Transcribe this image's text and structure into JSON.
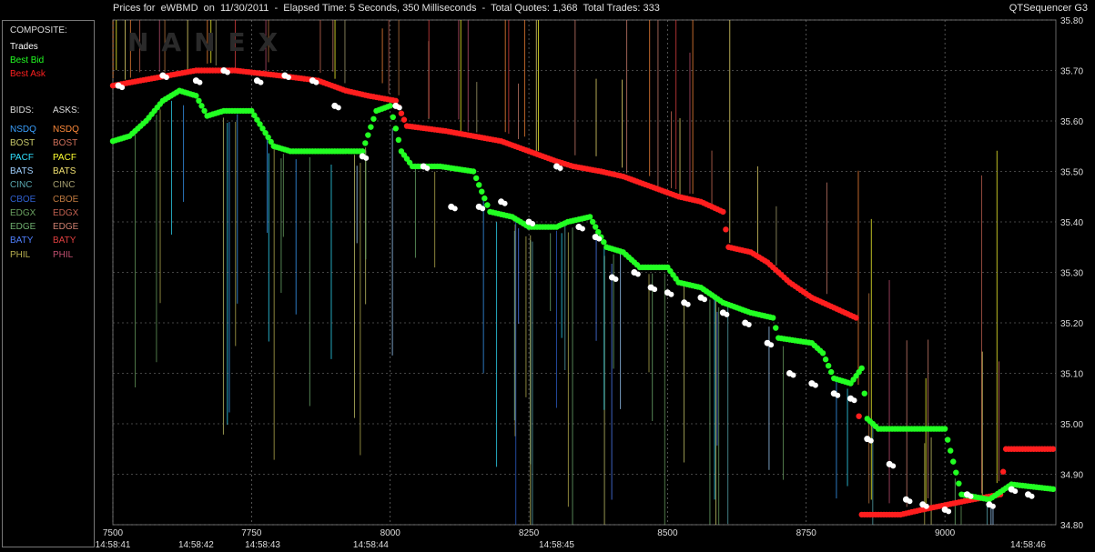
{
  "header": {
    "title": "Prices for  eWBMD  on  11/30/2011  -  Elapsed Time: 5 Seconds, 350 Milliseconds  -  Total Quotes: 1,368  Total Trades: 333",
    "app": "QTSequencer G3"
  },
  "watermark": "NANEX",
  "legend": {
    "composite_label": "COMPOSITE:",
    "composite": [
      {
        "label": "Trades",
        "color": "#ffffff"
      },
      {
        "label": "Best Bid",
        "color": "#22ff22"
      },
      {
        "label": "Best Ask",
        "color": "#ff2020"
      }
    ],
    "bids_label": "BIDS:",
    "asks_label": "ASKS:",
    "exchanges": [
      {
        "bid": "NSDQ",
        "bid_color": "#3aa0ff",
        "ask": "NSDQ",
        "ask_color": "#ff8a3a"
      },
      {
        "bid": "BOST",
        "bid_color": "#c9c96a",
        "ask": "BOST",
        "ask_color": "#d0705a"
      },
      {
        "bid": "PACF",
        "bid_color": "#30e0ff",
        "ask": "PACF",
        "ask_color": "#ffff30"
      },
      {
        "bid": "BATS",
        "bid_color": "#a0d0ff",
        "ask": "BATS",
        "ask_color": "#f0e070"
      },
      {
        "bid": "CINC",
        "bid_color": "#5aa8b0",
        "ask": "CINC",
        "ask_color": "#a8a070"
      },
      {
        "bid": "CBOE",
        "bid_color": "#3060d0",
        "ask": "CBOE",
        "ask_color": "#c07a40"
      },
      {
        "bid": "EDGX",
        "bid_color": "#6aa060",
        "ask": "EDGX",
        "ask_color": "#c06050"
      },
      {
        "bid": "EDGE",
        "bid_color": "#70b070",
        "ask": "EDGE",
        "ask_color": "#d08070"
      },
      {
        "bid": "BATY",
        "bid_color": "#5080ff",
        "ask": "BATY",
        "ask_color": "#e04040"
      },
      {
        "bid": "PHIL",
        "bid_color": "#b8b050",
        "ask": "PHIL",
        "ask_color": "#c05070"
      }
    ]
  },
  "chart_data": {
    "type": "line",
    "title": "Prices for eWBMD on 11/30/2011",
    "xlabel": "",
    "ylabel": "",
    "xlim": [
      7500,
      9200
    ],
    "ylim": [
      34.8,
      35.8
    ],
    "x_ticks": [
      7500,
      7750,
      8000,
      8250,
      8500,
      8750,
      9000
    ],
    "y_ticks": [
      "35.80",
      "35.70",
      "35.60",
      "35.50",
      "35.40",
      "35.30",
      "35.20",
      "35.10",
      "35.00",
      "34.90",
      "34.80"
    ],
    "time_labels": [
      {
        "x": 7500,
        "label": "14:58:41"
      },
      {
        "x": 7650,
        "label": "14:58:42"
      },
      {
        "x": 7770,
        "label": "14:58:43"
      },
      {
        "x": 7965,
        "label": "14:58:44"
      },
      {
        "x": 8300,
        "label": "14:58:45"
      },
      {
        "x": 9150,
        "label": "14:58:46"
      }
    ],
    "grid": true,
    "series": [
      {
        "name": "Best Ask",
        "color": "#ff1e1e",
        "points": [
          [
            7500,
            35.67
          ],
          [
            7550,
            35.68
          ],
          [
            7600,
            35.69
          ],
          [
            7650,
            35.7
          ],
          [
            7720,
            35.7
          ],
          [
            7800,
            35.69
          ],
          [
            7870,
            35.68
          ],
          [
            7920,
            35.66
          ],
          [
            7960,
            35.65
          ],
          [
            8010,
            35.64
          ],
          [
            8030,
            35.59
          ],
          [
            8100,
            35.58
          ],
          [
            8150,
            35.57
          ],
          [
            8200,
            35.56
          ],
          [
            8250,
            35.54
          ],
          [
            8300,
            35.52
          ],
          [
            8330,
            35.51
          ],
          [
            8380,
            35.5
          ],
          [
            8420,
            35.49
          ],
          [
            8470,
            35.47
          ],
          [
            8520,
            35.45
          ],
          [
            8560,
            35.44
          ],
          [
            8600,
            35.42
          ],
          [
            8610,
            35.35
          ],
          [
            8650,
            35.34
          ],
          [
            8680,
            35.32
          ],
          [
            8720,
            35.28
          ],
          [
            8760,
            35.25
          ],
          [
            8800,
            35.23
          ],
          [
            8840,
            35.21
          ],
          [
            8850,
            34.82
          ],
          [
            8920,
            34.82
          ],
          [
            8960,
            34.83
          ],
          [
            9050,
            34.85
          ],
          [
            9100,
            34.86
          ],
          [
            9110,
            34.95
          ],
          [
            9200,
            34.95
          ]
        ]
      },
      {
        "name": "Best Bid",
        "color": "#22ff22",
        "points": [
          [
            7500,
            35.56
          ],
          [
            7530,
            35.57
          ],
          [
            7560,
            35.6
          ],
          [
            7590,
            35.64
          ],
          [
            7620,
            35.66
          ],
          [
            7650,
            35.65
          ],
          [
            7670,
            35.61
          ],
          [
            7700,
            35.62
          ],
          [
            7750,
            35.62
          ],
          [
            7790,
            35.55
          ],
          [
            7820,
            35.54
          ],
          [
            7950,
            35.54
          ],
          [
            7975,
            35.62
          ],
          [
            8000,
            35.63
          ],
          [
            8020,
            35.54
          ],
          [
            8040,
            35.51
          ],
          [
            8090,
            35.51
          ],
          [
            8150,
            35.5
          ],
          [
            8180,
            35.42
          ],
          [
            8220,
            35.41
          ],
          [
            8250,
            35.39
          ],
          [
            8300,
            35.39
          ],
          [
            8320,
            35.4
          ],
          [
            8360,
            35.41
          ],
          [
            8390,
            35.35
          ],
          [
            8420,
            35.34
          ],
          [
            8450,
            35.31
          ],
          [
            8500,
            35.31
          ],
          [
            8520,
            35.28
          ],
          [
            8560,
            35.27
          ],
          [
            8600,
            35.24
          ],
          [
            8650,
            35.22
          ],
          [
            8690,
            35.21
          ],
          [
            8700,
            35.17
          ],
          [
            8760,
            35.16
          ],
          [
            8780,
            35.14
          ],
          [
            8800,
            35.09
          ],
          [
            8830,
            35.08
          ],
          [
            8850,
            35.11
          ],
          [
            8860,
            35.01
          ],
          [
            8880,
            34.99
          ],
          [
            8950,
            34.99
          ],
          [
            9000,
            34.99
          ],
          [
            9030,
            34.86
          ],
          [
            9080,
            34.85
          ],
          [
            9120,
            34.88
          ],
          [
            9200,
            34.87
          ]
        ]
      },
      {
        "name": "Trades",
        "color": "#ffffff",
        "points": [
          [
            7510,
            35.67
          ],
          [
            7590,
            35.69
          ],
          [
            7650,
            35.68
          ],
          [
            7700,
            35.7
          ],
          [
            7760,
            35.68
          ],
          [
            7810,
            35.69
          ],
          [
            7860,
            35.68
          ],
          [
            7900,
            35.63
          ],
          [
            7950,
            35.53
          ],
          [
            8010,
            35.63
          ],
          [
            8060,
            35.51
          ],
          [
            8110,
            35.43
          ],
          [
            8160,
            35.43
          ],
          [
            8200,
            35.44
          ],
          [
            8250,
            35.4
          ],
          [
            8300,
            35.51
          ],
          [
            8340,
            35.39
          ],
          [
            8370,
            35.37
          ],
          [
            8400,
            35.29
          ],
          [
            8440,
            35.3
          ],
          [
            8470,
            35.27
          ],
          [
            8500,
            35.26
          ],
          [
            8530,
            35.24
          ],
          [
            8560,
            35.25
          ],
          [
            8600,
            35.22
          ],
          [
            8640,
            35.2
          ],
          [
            8680,
            35.16
          ],
          [
            8720,
            35.1
          ],
          [
            8760,
            35.08
          ],
          [
            8800,
            35.06
          ],
          [
            8830,
            35.05
          ],
          [
            8860,
            34.97
          ],
          [
            8900,
            34.92
          ],
          [
            8930,
            34.85
          ],
          [
            8960,
            34.84
          ],
          [
            9000,
            34.83
          ],
          [
            9040,
            34.86
          ],
          [
            9080,
            34.84
          ],
          [
            9120,
            34.87
          ],
          [
            9150,
            34.86
          ]
        ]
      }
    ]
  }
}
